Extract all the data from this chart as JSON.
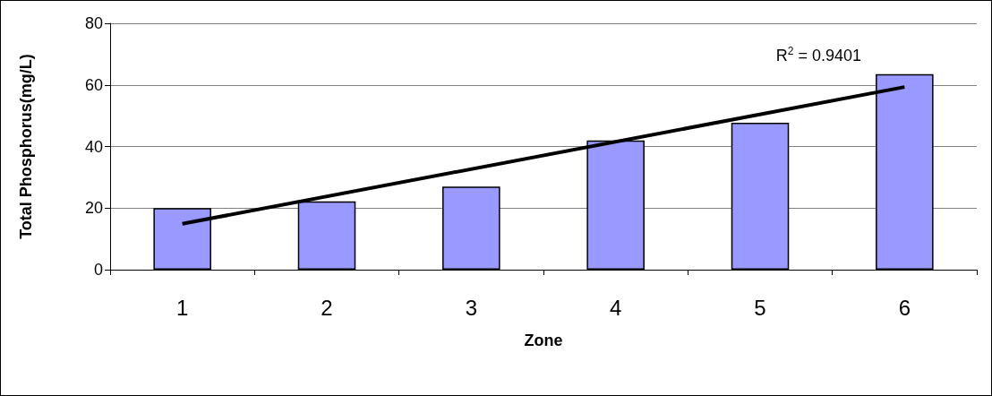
{
  "chart_data": {
    "type": "bar",
    "xlabel": "Zone",
    "ylabel": "Total Phosphorus(mg/L)",
    "categories": [
      "1",
      "2",
      "3",
      "4",
      "5",
      "6"
    ],
    "series": [
      {
        "color": "#9999ff",
        "values": [
          20,
          22.2,
          27,
          42,
          47.7,
          63.5
        ]
      },
      {
        "type": "line",
        "color": "#000000",
        "x": [
          "1",
          "6"
        ],
        "values": [
          14.9,
          59.3
        ]
      }
    ],
    "ylim": [
      0,
      80
    ],
    "yticks": [
      0,
      20,
      40,
      60,
      80
    ],
    "grid": "y",
    "marker": "none",
    "annotations": [
      "R$^{2}$ = 0.9401"
    ]
  }
}
